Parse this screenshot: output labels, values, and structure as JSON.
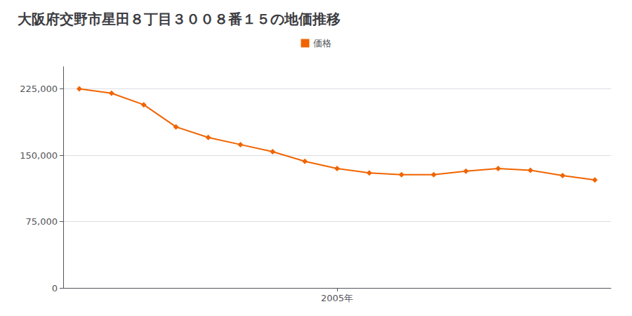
{
  "chart_data": {
    "type": "line",
    "title": "大阪府交野市星田８丁目３００８番１５の地価推移",
    "x": [
      1997,
      1998,
      1999,
      2000,
      2001,
      2002,
      2003,
      2004,
      2005,
      2006,
      2007,
      2008,
      2009,
      2010,
      2011,
      2012,
      2013
    ],
    "series": [
      {
        "name": "価格",
        "color": "#f06400",
        "marker": "diamond",
        "values": [
          225000,
          220000,
          207000,
          182000,
          170000,
          162000,
          154000,
          143000,
          135000,
          130000,
          128000,
          128000,
          132000,
          135000,
          133000,
          127000,
          122000
        ]
      }
    ],
    "xlim": [
      1996.5,
      2013.5
    ],
    "xticks": [
      {
        "value": 2005,
        "label": "2005年"
      }
    ],
    "ylim": [
      0,
      250000
    ],
    "yticks": [
      0,
      {
        "value": 75000,
        "label": "75,000"
      },
      {
        "value": 150000,
        "label": "150,000"
      },
      {
        "value": 225000,
        "label": "225,000"
      }
    ],
    "grid": true,
    "legend": "top"
  }
}
